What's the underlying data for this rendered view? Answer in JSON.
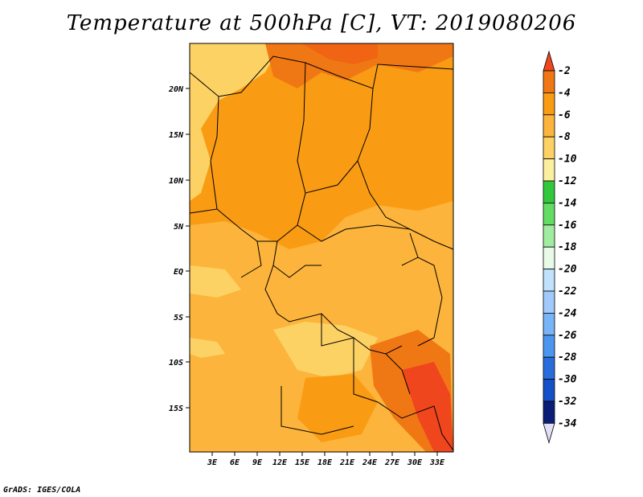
{
  "title": "Temperature at 500hPa [C], VT: 2019080206",
  "footer": "GrADS: IGES/COLA",
  "map": {
    "lat_labels": [
      "20N",
      "15N",
      "10N",
      "5N",
      "EQ",
      "5S",
      "10S",
      "15S"
    ],
    "lon_labels": [
      "3E",
      "6E",
      "9E",
      "12E",
      "15E",
      "18E",
      "21E",
      "24E",
      "27E",
      "30E",
      "33E"
    ]
  },
  "colorbar": {
    "labels": [
      "-2",
      "-4",
      "-6",
      "-8",
      "-10",
      "-12",
      "-14",
      "-16",
      "-18",
      "-20",
      "-22",
      "-24",
      "-26",
      "-28",
      "-30",
      "-32",
      "-34"
    ],
    "colors": [
      "#f0461e",
      "#f07814",
      "#fa9b14",
      "#fcb43c",
      "#fcd264",
      "#fcf0a0",
      "#32c83c",
      "#64dc64",
      "#a0eca0",
      "#e8fae8",
      "#c0e2fc",
      "#a0cafc",
      "#78b4f8",
      "#4c96f0",
      "#2a6cdc",
      "#1450c8",
      "#0a1e78",
      "#e0e0f8"
    ]
  }
}
